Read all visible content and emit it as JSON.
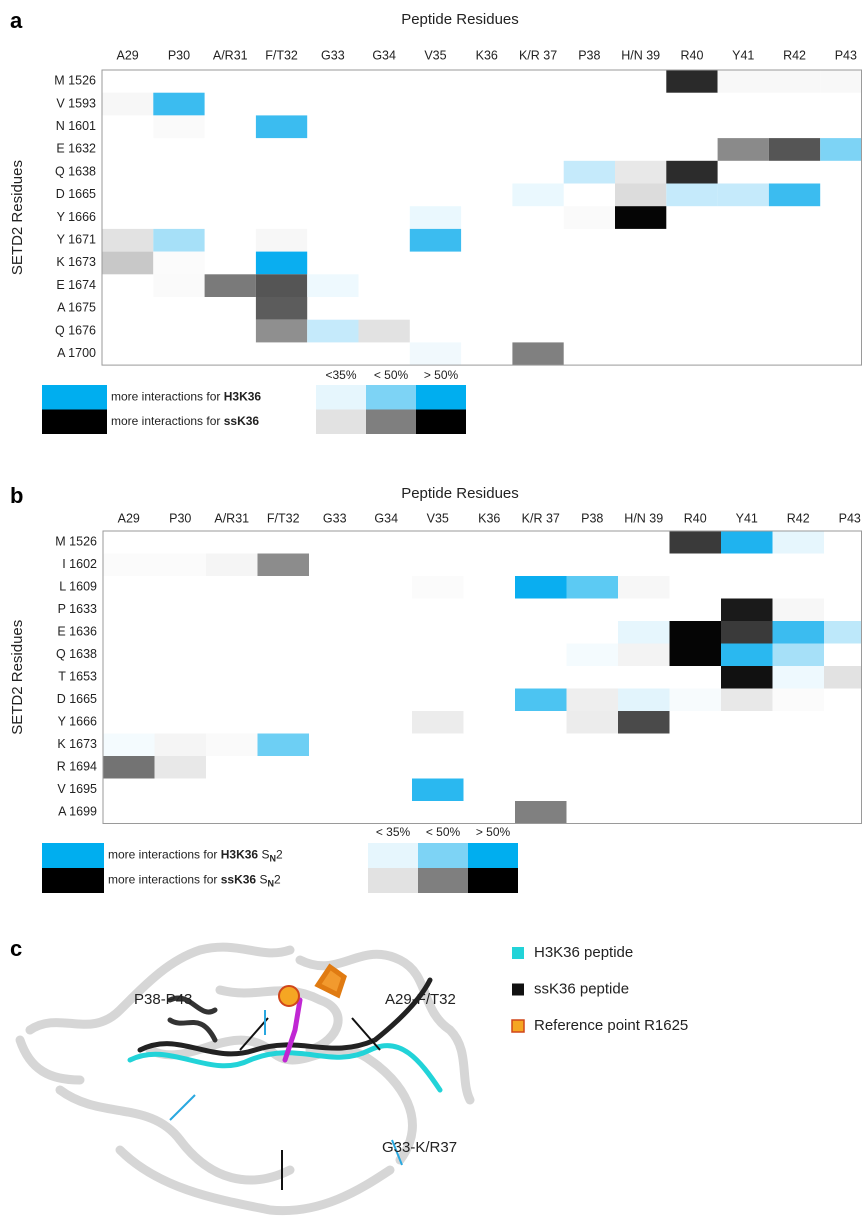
{
  "panels": [
    {
      "label": "a",
      "x_title": "Peptide Residues",
      "y_title": "SETD2 Residues",
      "columns": [
        "A29",
        "P30",
        "A/R31",
        "F/T32",
        "G33",
        "G34",
        "V35",
        "K36",
        "K/R 37",
        "P38",
        "H/N 39",
        "R40",
        "Y41",
        "R42",
        "P43"
      ],
      "rows": [
        {
          "label": "M 1526",
          "cells": [
            null,
            null,
            null,
            null,
            null,
            null,
            null,
            null,
            null,
            null,
            null,
            "#2a2a2a",
            "#f8f8f8",
            "#f8f8f8",
            "#f8f8f8"
          ]
        },
        {
          "label": "V 1593",
          "cells": [
            "#f7f7f7",
            "#3bbcf0",
            null,
            null,
            null,
            null,
            null,
            null,
            null,
            null,
            null,
            null,
            null,
            null,
            null
          ]
        },
        {
          "label": "N 1601",
          "cells": [
            null,
            "#fafafa",
            null,
            "#3bbcf0",
            null,
            null,
            null,
            null,
            null,
            null,
            null,
            null,
            null,
            null,
            null
          ]
        },
        {
          "label": "E 1632",
          "cells": [
            null,
            null,
            null,
            null,
            null,
            null,
            null,
            null,
            null,
            null,
            null,
            null,
            "#8a8a8a",
            "#555555",
            "#7dd3f5"
          ]
        },
        {
          "label": "Q 1638",
          "cells": [
            null,
            null,
            null,
            null,
            null,
            null,
            null,
            null,
            null,
            "#c5eafb",
            "#e8e8e8",
            "#2c2c2c",
            null,
            null,
            null
          ]
        },
        {
          "label": "D 1665",
          "cells": [
            null,
            null,
            null,
            null,
            null,
            null,
            null,
            null,
            "#eaf8fe",
            null,
            "#dcdcdc",
            "#c5eafb",
            "#c5eafb",
            "#3bbcf0",
            null
          ]
        },
        {
          "label": "Y 1666",
          "cells": [
            null,
            null,
            null,
            null,
            null,
            null,
            "#eaf8fe",
            null,
            null,
            "#fafafa",
            "#050505",
            null,
            null,
            null,
            null
          ]
        },
        {
          "label": "Y 1671",
          "cells": [
            "#e2e2e2",
            "#a6e0f8",
            null,
            "#f7f7f7",
            null,
            null,
            "#3bbcf0",
            null,
            null,
            null,
            null,
            null,
            null,
            null,
            null
          ]
        },
        {
          "label": "K 1673",
          "cells": [
            "#c8c8c8",
            "#fbfbfb",
            null,
            "#0aaef0",
            null,
            null,
            null,
            null,
            null,
            null,
            null,
            null,
            null,
            null,
            null
          ]
        },
        {
          "label": "E 1674",
          "cells": [
            null,
            "#fafafa",
            "#7a7a7a",
            "#555555",
            "#eef9fe",
            null,
            null,
            null,
            null,
            null,
            null,
            null,
            null,
            null,
            null
          ]
        },
        {
          "label": "A 1675",
          "cells": [
            null,
            null,
            null,
            "#5c5c5c",
            null,
            null,
            null,
            null,
            null,
            null,
            null,
            null,
            null,
            null,
            null
          ]
        },
        {
          "label": "Q 1676",
          "cells": [
            null,
            null,
            null,
            "#8f8f8f",
            "#c5eafb",
            "#e2e2e2",
            null,
            null,
            null,
            null,
            null,
            null,
            null,
            null,
            null
          ]
        },
        {
          "label": "A 1700",
          "cells": [
            null,
            null,
            null,
            null,
            null,
            null,
            "#f1f9fd",
            null,
            "#808080",
            null,
            null,
            null,
            null,
            null,
            null
          ]
        }
      ],
      "legend": {
        "thresholds": [
          "<35%",
          "< 50%",
          "> 50%"
        ],
        "items": [
          {
            "text": "more interactions for",
            "bold": "H3K36",
            "bar": "#00aeef",
            "swatches": [
              "#e6f6fd",
              "#7dd3f5",
              "#00aeef"
            ]
          },
          {
            "text": "more interactions for",
            "bold": "ssK36",
            "bar": "#000000",
            "swatches": [
              "#e2e2e2",
              "#7f7f7f",
              "#000000"
            ]
          }
        ]
      }
    },
    {
      "label": "b",
      "x_title": "Peptide Residues",
      "y_title": "SETD2 Residues",
      "columns": [
        "A29",
        "P30",
        "A/R31",
        "F/T32",
        "G33",
        "G34",
        "V35",
        "K36",
        "K/R 37",
        "P38",
        "H/N 39",
        "R40",
        "Y41",
        "R42",
        "P43"
      ],
      "rows": [
        {
          "label": "M 1526",
          "cells": [
            null,
            null,
            null,
            null,
            null,
            null,
            null,
            null,
            null,
            null,
            null,
            "#3a3a3a",
            "#1fb3ef",
            "#e6f6fd",
            null
          ]
        },
        {
          "label": "I 1602",
          "cells": [
            "#fbfbfb",
            "#fbfbfb",
            "#f5f5f5",
            "#8c8c8c",
            null,
            null,
            null,
            null,
            null,
            null,
            null,
            null,
            null,
            null,
            null
          ]
        },
        {
          "label": "L 1609",
          "cells": [
            null,
            null,
            null,
            null,
            null,
            null,
            "#fbfbfb",
            null,
            "#0aaef0",
            "#5ccaf3",
            "#f7f7f7",
            null,
            null,
            null,
            null
          ]
        },
        {
          "label": "P 1633",
          "cells": [
            null,
            null,
            null,
            null,
            null,
            null,
            null,
            null,
            null,
            null,
            null,
            null,
            "#1a1a1a",
            "#f7f7f7",
            null
          ]
        },
        {
          "label": "E 1636",
          "cells": [
            null,
            null,
            null,
            null,
            null,
            null,
            null,
            null,
            null,
            null,
            "#e6f6fd",
            "#050505",
            "#3a3a3a",
            "#3bbcf0",
            "#bde8fa"
          ]
        },
        {
          "label": "Q 1638",
          "cells": [
            null,
            null,
            null,
            null,
            null,
            null,
            null,
            null,
            null,
            "#f4fbfe",
            "#f3f3f3",
            "#050505",
            "#2ab8f0",
            "#a6e0f8",
            null
          ]
        },
        {
          "label": "T 1653",
          "cells": [
            null,
            null,
            null,
            null,
            null,
            null,
            null,
            null,
            null,
            null,
            null,
            null,
            "#111111",
            "#eef9fe",
            "#e2e2e2"
          ]
        },
        {
          "label": "D 1665",
          "cells": [
            null,
            null,
            null,
            null,
            null,
            null,
            null,
            null,
            "#4cc4f2",
            "#eeeeee",
            "#e2f4fc",
            "#f7fbfd",
            "#e8e8e8",
            "#fbfbfb",
            null
          ]
        },
        {
          "label": "Y 1666",
          "cells": [
            null,
            null,
            null,
            null,
            null,
            null,
            "#ececec",
            null,
            null,
            "#ececec",
            "#4a4a4a",
            null,
            null,
            null,
            null
          ]
        },
        {
          "label": "K 1673",
          "cells": [
            "#f4fbfe",
            "#f5f5f5",
            "#fafafa",
            "#6dcff4",
            null,
            null,
            null,
            null,
            null,
            null,
            null,
            null,
            null,
            null,
            null
          ]
        },
        {
          "label": "R 1694",
          "cells": [
            "#737373",
            "#e8e8e8",
            null,
            null,
            null,
            null,
            null,
            null,
            null,
            null,
            null,
            null,
            null,
            null,
            null
          ]
        },
        {
          "label": "V 1695",
          "cells": [
            null,
            null,
            null,
            null,
            null,
            null,
            "#2ab8f0",
            null,
            null,
            null,
            null,
            null,
            null,
            null,
            null
          ]
        },
        {
          "label": "A 1699",
          "cells": [
            null,
            null,
            null,
            null,
            null,
            null,
            null,
            null,
            "#808080",
            null,
            null,
            null,
            null,
            null,
            null
          ]
        }
      ],
      "legend": {
        "thresholds": [
          "< 35%",
          "< 50%",
          "> 50%"
        ],
        "items": [
          {
            "text": "more interactions for",
            "bold": "H3K36",
            "suffix": "S",
            "sub": "N",
            "tail": "2",
            "bar": "#00aeef",
            "swatches": [
              "#e6f6fd",
              "#7dd3f5",
              "#00aeef"
            ]
          },
          {
            "text": "more interactions for",
            "bold": "ssK36",
            "suffix": "S",
            "sub": "N",
            "tail": "2",
            "bar": "#000000",
            "swatches": [
              "#e2e2e2",
              "#7f7f7f",
              "#000000"
            ]
          }
        ]
      }
    }
  ],
  "structure": {
    "label": "c",
    "annotations": [
      "P38-P43",
      "A29-F/T32",
      "G33-K/R37"
    ],
    "legend": [
      {
        "text": "H3K36 peptide",
        "color": "#22d3d8"
      },
      {
        "text": "ssK36 peptide",
        "color": "#111111"
      },
      {
        "text": "Reference point R1625",
        "color": "#f5a623"
      }
    ]
  }
}
